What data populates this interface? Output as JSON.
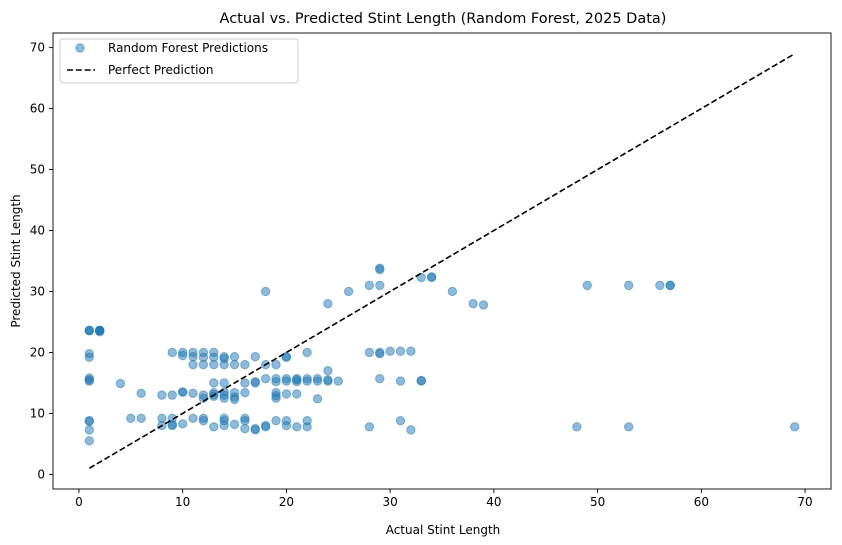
{
  "chart_data": {
    "type": "scatter",
    "title": "Actual vs. Predicted Stint Length (Random Forest, 2025 Data)",
    "xlabel": "Actual Stint Length",
    "ylabel": "Predicted Stint Length",
    "xlim": [
      -2.5,
      72.5
    ],
    "ylim": [
      -2.4,
      72.4
    ],
    "xticks": [
      0,
      10,
      20,
      30,
      40,
      50,
      60,
      70
    ],
    "yticks": [
      0,
      10,
      20,
      30,
      40,
      50,
      60,
      70
    ],
    "grid": false,
    "legend_position": "top-left",
    "series": [
      {
        "name": "Random Forest Predictions",
        "kind": "scatter",
        "color": "#1f77b4",
        "opacity": 0.5,
        "points": [
          [
            1,
            23.6
          ],
          [
            1,
            23.6
          ],
          [
            1,
            23.6
          ],
          [
            1,
            19.8
          ],
          [
            1,
            19.2
          ],
          [
            1,
            15.8
          ],
          [
            1,
            15.5
          ],
          [
            1,
            15.3
          ],
          [
            1,
            8.8
          ],
          [
            1,
            8.7
          ],
          [
            1,
            7.3
          ],
          [
            1,
            5.5
          ],
          [
            2,
            23.6
          ],
          [
            2,
            23.6
          ],
          [
            2,
            23.6
          ],
          [
            2,
            23.4
          ],
          [
            2,
            23.6
          ],
          [
            4,
            14.9
          ],
          [
            5,
            9.2
          ],
          [
            6,
            13.3
          ],
          [
            6,
            9.2
          ],
          [
            8,
            13.0
          ],
          [
            8,
            9.2
          ],
          [
            8,
            8.0
          ],
          [
            9,
            20.0
          ],
          [
            9,
            13.0
          ],
          [
            9,
            9.2
          ],
          [
            9,
            8.2
          ],
          [
            9,
            8.0
          ],
          [
            10,
            20.0
          ],
          [
            10,
            19.5
          ],
          [
            10,
            13.5
          ],
          [
            10,
            13.5
          ],
          [
            10,
            8.3
          ],
          [
            11,
            20.0
          ],
          [
            11,
            19.3
          ],
          [
            11,
            18.0
          ],
          [
            11,
            13.3
          ],
          [
            11,
            9.2
          ],
          [
            12,
            20.0
          ],
          [
            12,
            19.2
          ],
          [
            12,
            18.0
          ],
          [
            12,
            13.0
          ],
          [
            12,
            12.5
          ],
          [
            12,
            9.2
          ],
          [
            12,
            8.8
          ],
          [
            13,
            20.0
          ],
          [
            13,
            19.2
          ],
          [
            13,
            18.0
          ],
          [
            13,
            15.0
          ],
          [
            13,
            13.4
          ],
          [
            13,
            13.1
          ],
          [
            13,
            12.8
          ],
          [
            13,
            7.8
          ],
          [
            14,
            19.3
          ],
          [
            14,
            19.0
          ],
          [
            14,
            18.0
          ],
          [
            14,
            15.0
          ],
          [
            14,
            13.5
          ],
          [
            14,
            13.0
          ],
          [
            14,
            12.5
          ],
          [
            14,
            9.2
          ],
          [
            14,
            8.8
          ],
          [
            14,
            8.0
          ],
          [
            15,
            19.3
          ],
          [
            15,
            18.0
          ],
          [
            15,
            13.4
          ],
          [
            15,
            12.7
          ],
          [
            15,
            12.3
          ],
          [
            15,
            8.2
          ],
          [
            16,
            18.0
          ],
          [
            16,
            15.0
          ],
          [
            16,
            13.4
          ],
          [
            16,
            9.2
          ],
          [
            16,
            8.8
          ],
          [
            16,
            7.5
          ],
          [
            17,
            19.3
          ],
          [
            17,
            15.2
          ],
          [
            17,
            15.0
          ],
          [
            17,
            7.5
          ],
          [
            17,
            7.3
          ],
          [
            18,
            30.0
          ],
          [
            18,
            18.0
          ],
          [
            18,
            15.7
          ],
          [
            18,
            8.0
          ],
          [
            18,
            7.8
          ],
          [
            19,
            18.0
          ],
          [
            19,
            15.7
          ],
          [
            19,
            15.2
          ],
          [
            19,
            13.4
          ],
          [
            19,
            12.9
          ],
          [
            19,
            12.5
          ],
          [
            19,
            8.8
          ],
          [
            20,
            19.3
          ],
          [
            20,
            19.2
          ],
          [
            20,
            15.7
          ],
          [
            20,
            15.3
          ],
          [
            20,
            13.2
          ],
          [
            20,
            8.8
          ],
          [
            20,
            8.0
          ],
          [
            21,
            15.7
          ],
          [
            21,
            15.5
          ],
          [
            21,
            15.2
          ],
          [
            21,
            13.2
          ],
          [
            21,
            7.8
          ],
          [
            22,
            20.0
          ],
          [
            22,
            15.7
          ],
          [
            22,
            15.3
          ],
          [
            22,
            8.8
          ],
          [
            22,
            7.8
          ],
          [
            23,
            15.7
          ],
          [
            23,
            15.3
          ],
          [
            23,
            12.4
          ],
          [
            24,
            28.0
          ],
          [
            24,
            17.0
          ],
          [
            24,
            15.5
          ],
          [
            24,
            15.3
          ],
          [
            25,
            15.3
          ],
          [
            26,
            30.0
          ],
          [
            28,
            31.0
          ],
          [
            28,
            20.0
          ],
          [
            28,
            7.8
          ],
          [
            29,
            33.8
          ],
          [
            29,
            33.6
          ],
          [
            29,
            31.0
          ],
          [
            29,
            20.0
          ],
          [
            29,
            19.8
          ],
          [
            29,
            15.7
          ],
          [
            30,
            20.2
          ],
          [
            31,
            20.2
          ],
          [
            31,
            15.3
          ],
          [
            31,
            8.8
          ],
          [
            32,
            20.2
          ],
          [
            32,
            7.3
          ],
          [
            33,
            32.3
          ],
          [
            33,
            15.4
          ],
          [
            33,
            15.3
          ],
          [
            34,
            32.4
          ],
          [
            34,
            32.3
          ],
          [
            36,
            30.0
          ],
          [
            38,
            28.0
          ],
          [
            39,
            27.8
          ],
          [
            48,
            7.8
          ],
          [
            49,
            31.0
          ],
          [
            53,
            31.0
          ],
          [
            53,
            7.8
          ],
          [
            56,
            31.0
          ],
          [
            57,
            31.0
          ],
          [
            57,
            31.0
          ],
          [
            69,
            7.8
          ]
        ]
      },
      {
        "name": "Perfect Prediction",
        "kind": "line",
        "color": "#000000",
        "dash": "dashed",
        "points": [
          [
            1,
            1
          ],
          [
            69,
            69
          ]
        ]
      }
    ]
  }
}
